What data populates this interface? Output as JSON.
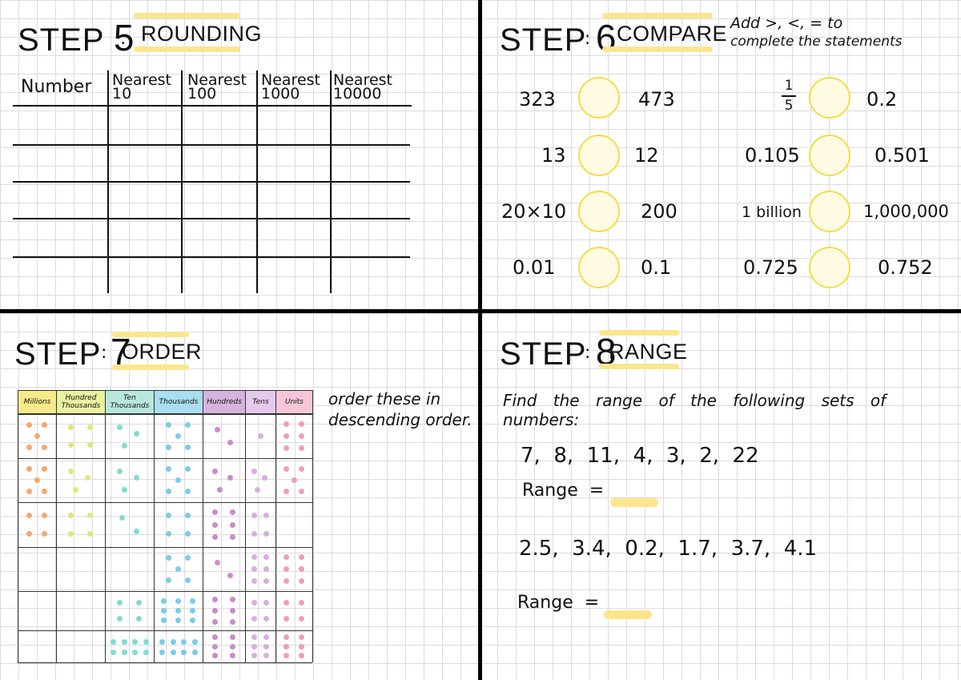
{
  "step5": {
    "step_word": "STEP",
    "number": "5",
    "title": "ROUNDING",
    "table_headers": [
      "Number",
      "Nearest 10",
      "Nearest 100",
      "Nearest 1000",
      "Nearest 10000"
    ]
  },
  "step6": {
    "step_word": "STEP",
    "number": "6",
    "title": "COMPARE",
    "instruction_line1": "Add >, <, = to",
    "instruction_line2": "complete the statements",
    "left": [
      {
        "a": "323",
        "b": "473"
      },
      {
        "a": "13",
        "b": "12"
      },
      {
        "a": "20×10",
        "b": "200"
      },
      {
        "a": "0.01",
        "b": "0.1"
      }
    ],
    "right": [
      {
        "a_num": "1",
        "a_den": "5",
        "b": "0.2"
      },
      {
        "a": "0.105",
        "b": "0.501"
      },
      {
        "a": "1 billion",
        "b": "1,000,000"
      },
      {
        "a": "0.725",
        "b": "0.752"
      }
    ]
  },
  "step7": {
    "step_word": "STEP",
    "number": "7",
    "title": "ORDER",
    "instruction_line1": "order these in",
    "instruction_line2": "descending order.",
    "columns": [
      {
        "label": "Millions",
        "color": "#f7ea88"
      },
      {
        "label": "Hundred Thousands",
        "color": "#e9f2a0"
      },
      {
        "label": "Ten Thousands",
        "color": "#b8e6dc"
      },
      {
        "label": "Thousands",
        "color": "#a8def0"
      },
      {
        "label": "Hundreds",
        "color": "#d6b3df"
      },
      {
        "label": "Tens",
        "color": "#e4c9ec"
      },
      {
        "label": "Units",
        "color": "#f6c6d8"
      }
    ],
    "dot_colors": [
      "#f5a86e",
      "#dfe77a",
      "#7fdccf",
      "#7ccbe6",
      "#c98ccb",
      "#d9aee0",
      "#f09cbc"
    ],
    "rows": [
      [
        5,
        4,
        3,
        5,
        2,
        1,
        6
      ],
      [
        5,
        3,
        3,
        5,
        3,
        3,
        5
      ],
      [
        4,
        4,
        2,
        4,
        6,
        4,
        0
      ],
      [
        0,
        0,
        0,
        5,
        2,
        6,
        6
      ],
      [
        0,
        0,
        4,
        9,
        6,
        4,
        4
      ],
      [
        0,
        0,
        8,
        8,
        6,
        6,
        6
      ]
    ]
  },
  "step8": {
    "step_word": "STEP",
    "number": "8",
    "title": "RANGE",
    "instruction_line1": "Find the range of the following sets of",
    "instruction_line2": "numbers:",
    "set1": "7,  8,  11,  4,  3,  2,  22",
    "range_label1": "Range  =",
    "set2": "2.5,  3.4,  0.2,  1.7,  3.7,  4.1",
    "range_label2": "Range  ="
  }
}
